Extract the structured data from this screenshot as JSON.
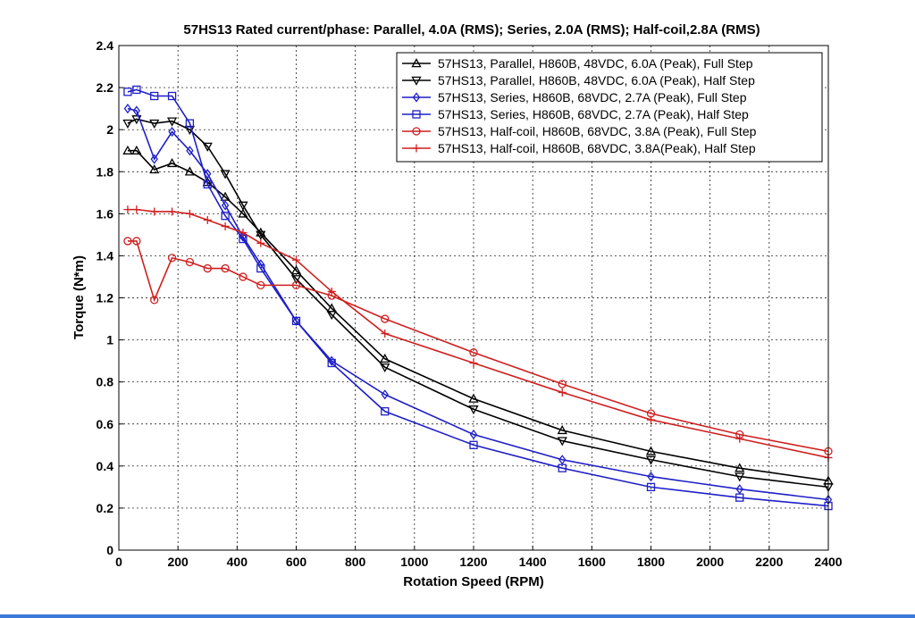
{
  "chart_data": {
    "type": "line",
    "title": "57HS13 Rated current/phase: Parallel, 4.0A (RMS); Series, 2.0A (RMS); Half-coil,2.8A (RMS)",
    "xlabel": "Rotation Speed (RPM)",
    "ylabel": "Torque (N*m)",
    "xlim": [
      0,
      2400
    ],
    "ylim": [
      0,
      2.4
    ],
    "xticks": [
      0,
      200,
      400,
      600,
      800,
      1000,
      1200,
      1400,
      1600,
      1800,
      2000,
      2200,
      2400
    ],
    "yticks": [
      0,
      0.2,
      0.4,
      0.6,
      0.8,
      1,
      1.2,
      1.4,
      1.6,
      1.8,
      2,
      2.2,
      2.4
    ],
    "grid": true,
    "legend_position": "top-right",
    "series": [
      {
        "name": "57HS13, Parallel, H860B, 48VDC, 6.0A (Peak), Full Step",
        "color": "#000000",
        "marker": "triangle-up",
        "x": [
          30,
          60,
          120,
          180,
          240,
          300,
          360,
          420,
          480,
          600,
          720,
          900,
          1200,
          1500,
          1800,
          2100,
          2400
        ],
        "y": [
          1.9,
          1.9,
          1.81,
          1.84,
          1.8,
          1.75,
          1.68,
          1.6,
          1.51,
          1.33,
          1.15,
          0.91,
          0.72,
          0.57,
          0.47,
          0.39,
          0.33
        ]
      },
      {
        "name": "57HS13, Parallel, H860B, 48VDC, 6.0A (Peak), Half Step",
        "color": "#000000",
        "marker": "triangle-down",
        "x": [
          30,
          60,
          120,
          180,
          240,
          300,
          360,
          420,
          480,
          600,
          720,
          900,
          1200,
          1500,
          1800,
          2100,
          2400
        ],
        "y": [
          2.03,
          2.05,
          2.03,
          2.04,
          2.0,
          1.92,
          1.79,
          1.64,
          1.5,
          1.29,
          1.12,
          0.87,
          0.67,
          0.52,
          0.43,
          0.35,
          0.3
        ]
      },
      {
        "name": "57HS13, Series, H860B, 68VDC, 2.7A (Peak), Full Step",
        "color": "#1f1fc8",
        "marker": "diamond",
        "x": [
          30,
          60,
          120,
          180,
          240,
          300,
          360,
          420,
          480,
          600,
          720,
          900,
          1200,
          1500,
          1800,
          2100,
          2400
        ],
        "y": [
          2.1,
          2.09,
          1.86,
          1.99,
          1.9,
          1.79,
          1.64,
          1.49,
          1.36,
          1.09,
          0.9,
          0.74,
          0.55,
          0.43,
          0.35,
          0.29,
          0.24
        ]
      },
      {
        "name": "57HS13, Series, H860B, 68VDC, 2.7A (Peak), Half Step",
        "color": "#1f1fc8",
        "marker": "square",
        "x": [
          30,
          60,
          120,
          180,
          240,
          300,
          360,
          420,
          480,
          600,
          720,
          900,
          1200,
          1500,
          1800,
          2100,
          2400
        ],
        "y": [
          2.18,
          2.19,
          2.16,
          2.16,
          2.03,
          1.74,
          1.59,
          1.48,
          1.34,
          1.09,
          0.89,
          0.66,
          0.5,
          0.39,
          0.3,
          0.25,
          0.21
        ]
      },
      {
        "name": "57HS13, Half-coil, H860B, 68VDC, 3.8A (Peak), Full Step",
        "color": "#d01f1f",
        "marker": "circle",
        "x": [
          30,
          60,
          120,
          180,
          240,
          300,
          360,
          420,
          480,
          600,
          720,
          900,
          1200,
          1500,
          1800,
          2100,
          2400
        ],
        "y": [
          1.47,
          1.47,
          1.19,
          1.39,
          1.37,
          1.34,
          1.34,
          1.3,
          1.26,
          1.26,
          1.21,
          1.1,
          0.94,
          0.79,
          0.65,
          0.55,
          0.47
        ]
      },
      {
        "name": "57HS13, Half-coil, H860B, 68VDC, 3.8A(Peak), Half Step",
        "color": "#d01f1f",
        "marker": "plus",
        "x": [
          30,
          60,
          120,
          180,
          240,
          300,
          360,
          420,
          480,
          600,
          720,
          900,
          1200,
          1500,
          1800,
          2100,
          2400
        ],
        "y": [
          1.62,
          1.62,
          1.61,
          1.61,
          1.6,
          1.57,
          1.54,
          1.51,
          1.46,
          1.38,
          1.23,
          1.03,
          0.89,
          0.75,
          0.62,
          0.53,
          0.44
        ]
      }
    ]
  }
}
